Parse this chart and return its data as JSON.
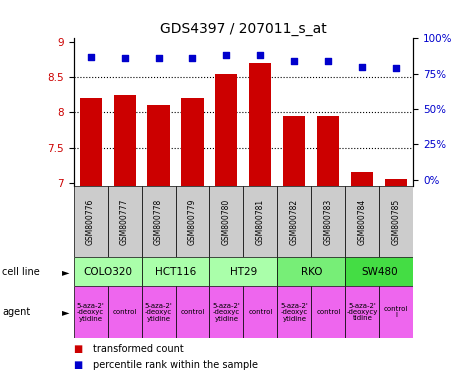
{
  "title": "GDS4397 / 207011_s_at",
  "samples": [
    "GSM800776",
    "GSM800777",
    "GSM800778",
    "GSM800779",
    "GSM800780",
    "GSM800781",
    "GSM800782",
    "GSM800783",
    "GSM800784",
    "GSM800785"
  ],
  "transformed_count": [
    8.2,
    8.25,
    8.1,
    8.2,
    8.55,
    8.7,
    7.95,
    7.95,
    7.15,
    7.05
  ],
  "percentile_rank": [
    87,
    86,
    86,
    86,
    88,
    88,
    84,
    84,
    80,
    79
  ],
  "ylim_left": [
    6.95,
    9.05
  ],
  "ylim_right": [
    -4.76,
    100
  ],
  "yticks_left": [
    7.0,
    7.5,
    8.0,
    8.5,
    9.0
  ],
  "ytick_labels_left": [
    "7",
    "7.5",
    "8",
    "8.5",
    "9"
  ],
  "yticks_right": [
    0,
    25,
    50,
    75,
    100
  ],
  "ytick_labels_right": [
    "0%",
    "25%",
    "50%",
    "75%",
    "100%"
  ],
  "bar_color": "#cc0000",
  "dot_color": "#0000cc",
  "bar_bottom": 6.95,
  "gridlines": [
    7.5,
    8.0,
    8.5
  ],
  "cell_lines": [
    {
      "label": "COLO320",
      "start": 0,
      "end": 2,
      "color": "#aaffaa"
    },
    {
      "label": "HCT116",
      "start": 2,
      "end": 4,
      "color": "#aaffaa"
    },
    {
      "label": "HT29",
      "start": 4,
      "end": 6,
      "color": "#aaffaa"
    },
    {
      "label": "RKO",
      "start": 6,
      "end": 8,
      "color": "#77ee77"
    },
    {
      "label": "SW480",
      "start": 8,
      "end": 10,
      "color": "#44dd44"
    }
  ],
  "agents": [
    {
      "label": "5-aza-2'\n-deoxyc\nytidine",
      "start": 0,
      "end": 1,
      "color": "#ee66ee"
    },
    {
      "label": "control",
      "start": 1,
      "end": 2,
      "color": "#ee66ee"
    },
    {
      "label": "5-aza-2'\n-deoxyc\nytidine",
      "start": 2,
      "end": 3,
      "color": "#ee66ee"
    },
    {
      "label": "control",
      "start": 3,
      "end": 4,
      "color": "#ee66ee"
    },
    {
      "label": "5-aza-2'\n-deoxyc\nytidine",
      "start": 4,
      "end": 5,
      "color": "#ee66ee"
    },
    {
      "label": "control",
      "start": 5,
      "end": 6,
      "color": "#ee66ee"
    },
    {
      "label": "5-aza-2'\n-deoxyc\nytidine",
      "start": 6,
      "end": 7,
      "color": "#ee66ee"
    },
    {
      "label": "control",
      "start": 7,
      "end": 8,
      "color": "#ee66ee"
    },
    {
      "label": "5-aza-2'\n-deoxycy\ntidine",
      "start": 8,
      "end": 9,
      "color": "#ee66ee"
    },
    {
      "label": "control\nl",
      "start": 9,
      "end": 10,
      "color": "#ee66ee"
    }
  ],
  "legend_transformed": "transformed count",
  "legend_percentile": "percentile rank within the sample",
  "label_cell_line": "cell line",
  "label_agent": "agent",
  "sample_label_bg": "#cccccc",
  "title_fontsize": 10,
  "tick_fontsize": 7.5,
  "sample_fontsize": 5.5,
  "cell_fontsize": 7.5,
  "agent_fontsize": 5,
  "legend_fontsize": 7,
  "row_label_fontsize": 7
}
